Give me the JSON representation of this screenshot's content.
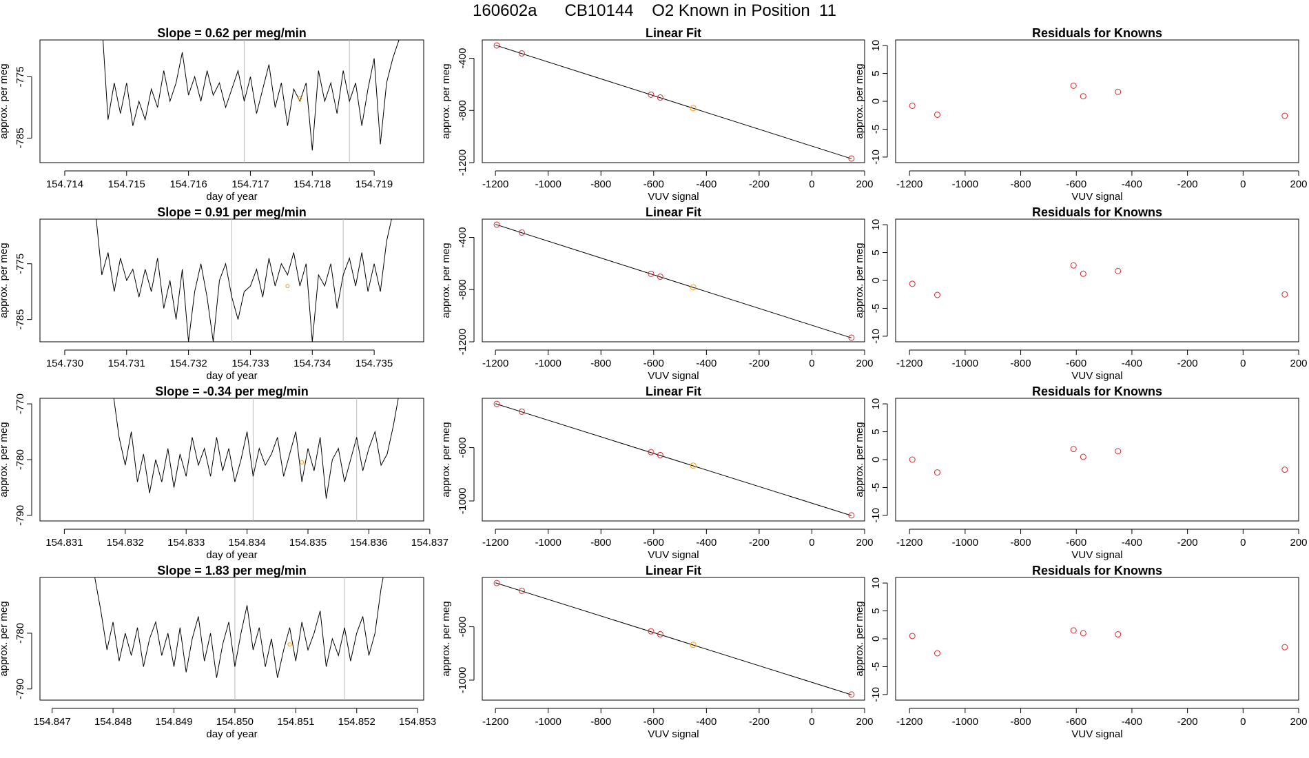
{
  "page_title": "160602a      CB10144    O2 Known in Position  11",
  "colors": {
    "line": "#000000",
    "known_point": "#d62728",
    "sample_point": "#ff9900",
    "marker_line": "#bbbbbb",
    "frame": "#000000"
  },
  "chart_data": [
    {
      "type": "line",
      "row": 0,
      "panel": "timeseries",
      "title": "Slope =  0.62  per meg/min",
      "xlabel": "day of year",
      "ylabel": "approx. per meg",
      "xlim": [
        154.7136,
        154.7198
      ],
      "ylim": [
        -789,
        -769
      ],
      "xticks": [
        154.714,
        154.715,
        154.716,
        154.717,
        154.718,
        154.719
      ],
      "xtick_labels": [
        "154.714",
        "154.715",
        "154.716",
        "154.717",
        "154.718",
        "154.719"
      ],
      "yticks": [
        -775,
        -785
      ],
      "ytick_labels": [
        "-775",
        "-785"
      ],
      "vlines": [
        154.7169,
        154.7186
      ],
      "sample_point": [
        154.7178,
        -778.5
      ],
      "x": [
        154.7146,
        154.7147,
        154.7148,
        154.7149,
        154.715,
        154.7151,
        154.7152,
        154.7153,
        154.7154,
        154.7155,
        154.7156,
        154.7157,
        154.7158,
        154.7159,
        154.716,
        154.7161,
        154.7162,
        154.7163,
        154.7164,
        154.7165,
        154.7166,
        154.7167,
        154.7168,
        154.7169,
        154.717,
        154.7171,
        154.7172,
        154.7173,
        154.7174,
        154.7175,
        154.7176,
        154.7177,
        154.7178,
        154.7179,
        154.718,
        154.7181,
        154.7182,
        154.7183,
        154.7184,
        154.7185,
        154.7186,
        154.7187,
        154.7188,
        154.7189,
        154.719,
        154.7191,
        154.7192,
        154.7193,
        154.7194
      ],
      "y": [
        -766,
        -782,
        -776,
        -781,
        -776,
        -783,
        -779,
        -782,
        -777,
        -780,
        -774,
        -779,
        -776,
        -771,
        -778,
        -775,
        -779,
        -774,
        -778,
        -776,
        -780,
        -777,
        -774,
        -779,
        -775,
        -781,
        -777,
        -773,
        -780,
        -776,
        -783,
        -777,
        -779,
        -776,
        -787,
        -774,
        -779,
        -776,
        -781,
        -774,
        -779,
        -776,
        -783,
        -777,
        -772,
        -786,
        -776,
        -772,
        -769
      ]
    },
    {
      "type": "scatter",
      "row": 0,
      "panel": "fit",
      "title": "Linear Fit",
      "xlabel": "VUV signal",
      "ylabel": "approx. per meg",
      "xlim": [
        -1250,
        200
      ],
      "ylim": [
        -1200,
        -260
      ],
      "xticks": [
        -1200,
        -1000,
        -800,
        -600,
        -400,
        -200,
        0,
        200
      ],
      "xtick_labels": [
        "-1200",
        "-1000",
        "-800",
        "-600",
        "-400",
        "-200",
        "0",
        "200"
      ],
      "yticks": [
        -400,
        -800,
        -1200
      ],
      "ytick_labels": [
        "-400",
        "-800",
        "-1200"
      ],
      "fit_line": [
        [
          -1200,
          -300
        ],
        [
          150,
          -1170
        ]
      ],
      "knowns": [
        [
          -1195,
          -302
        ],
        [
          -1100,
          -363
        ],
        [
          -610,
          -679
        ],
        [
          -575,
          -701
        ],
        [
          150,
          -1168
        ]
      ],
      "sample": [
        [
          -450,
          -782
        ]
      ]
    },
    {
      "type": "scatter",
      "row": 0,
      "panel": "residuals",
      "title": "Residuals for Knowns",
      "xlabel": "VUV signal",
      "ylabel": "approx. per meg",
      "xlim": [
        -1250,
        200
      ],
      "ylim": [
        -11,
        11
      ],
      "xticks": [
        -1200,
        -1000,
        -800,
        -600,
        -400,
        -200,
        0,
        200
      ],
      "xtick_labels": [
        "-1200",
        "-1000",
        "-800",
        "-600",
        "-400",
        "-200",
        "0",
        "200"
      ],
      "yticks": [
        10,
        5,
        0,
        -5,
        -10
      ],
      "ytick_labels": [
        "10",
        "5",
        "0",
        "-5",
        "-10"
      ],
      "points": [
        [
          -1190,
          -0.8
        ],
        [
          -1100,
          -2.4
        ],
        [
          -610,
          2.8
        ],
        [
          -575,
          0.9
        ],
        [
          -450,
          1.7
        ],
        [
          150,
          -2.6
        ]
      ]
    },
    {
      "type": "line",
      "row": 1,
      "panel": "timeseries",
      "title": "Slope =  0.91  per meg/min",
      "xlabel": "day of year",
      "ylabel": "approx. per meg",
      "xlim": [
        154.7296,
        154.7358
      ],
      "ylim": [
        -789,
        -767
      ],
      "xticks": [
        154.73,
        154.731,
        154.732,
        154.733,
        154.734,
        154.735
      ],
      "xtick_labels": [
        "154.730",
        "154.731",
        "154.732",
        "154.733",
        "154.734",
        "154.735"
      ],
      "yticks": [
        -775,
        -785
      ],
      "ytick_labels": [
        "-775",
        "-785"
      ],
      "vlines": [
        154.7327,
        154.7345
      ],
      "sample_point": [
        154.7336,
        -779.0
      ],
      "x": [
        154.7305,
        154.7306,
        154.7307,
        154.7308,
        154.7309,
        154.731,
        154.7311,
        154.7312,
        154.7313,
        154.7314,
        154.7315,
        154.7316,
        154.7317,
        154.7318,
        154.7319,
        154.732,
        154.7321,
        154.7322,
        154.7323,
        154.7324,
        154.7325,
        154.7326,
        154.7327,
        154.7328,
        154.7329,
        154.733,
        154.7331,
        154.7332,
        154.7333,
        154.7334,
        154.7335,
        154.7336,
        154.7337,
        154.7338,
        154.7339,
        154.734,
        154.7341,
        154.7342,
        154.7343,
        154.7344,
        154.7345,
        154.7346,
        154.7347,
        154.7348,
        154.7349,
        154.735,
        154.7351,
        154.7352,
        154.7353
      ],
      "y": [
        -766,
        -777,
        -773,
        -780,
        -774,
        -778,
        -776,
        -781,
        -776,
        -780,
        -774,
        -783,
        -778,
        -785,
        -776,
        -789,
        -780,
        -775,
        -781,
        -789,
        -778,
        -775,
        -781,
        -785,
        -780,
        -779,
        -776,
        -781,
        -774,
        -779,
        -775,
        -777,
        -773,
        -779,
        -775,
        -789,
        -777,
        -779,
        -775,
        -783,
        -777,
        -774,
        -779,
        -773,
        -780,
        -775,
        -780,
        -771,
        -766
      ]
    },
    {
      "type": "scatter",
      "row": 1,
      "panel": "fit",
      "title": "Linear Fit",
      "xlabel": "VUV signal",
      "ylabel": "approx. per meg",
      "xlim": [
        -1250,
        200
      ],
      "ylim": [
        -1200,
        -260
      ],
      "xticks": [
        -1200,
        -1000,
        -800,
        -600,
        -400,
        -200,
        0,
        200
      ],
      "xtick_labels": [
        "-1200",
        "-1000",
        "-800",
        "-600",
        "-400",
        "-200",
        "0",
        "200"
      ],
      "yticks": [
        -400,
        -800,
        -1200
      ],
      "ytick_labels": [
        "-400",
        "-800",
        "-1200"
      ],
      "fit_line": [
        [
          -1200,
          -300
        ],
        [
          150,
          -1170
        ]
      ],
      "knowns": [
        [
          -1195,
          -302
        ],
        [
          -1100,
          -363
        ],
        [
          -610,
          -679
        ],
        [
          -575,
          -701
        ],
        [
          150,
          -1168
        ]
      ],
      "sample": [
        [
          -450,
          -782
        ]
      ]
    },
    {
      "type": "scatter",
      "row": 1,
      "panel": "residuals",
      "title": "Residuals for Knowns",
      "xlabel": "VUV signal",
      "ylabel": "approx. per meg",
      "xlim": [
        -1250,
        200
      ],
      "ylim": [
        -11,
        11
      ],
      "xticks": [
        -1200,
        -1000,
        -800,
        -600,
        -400,
        -200,
        0,
        200
      ],
      "xtick_labels": [
        "-1200",
        "-1000",
        "-800",
        "-600",
        "-400",
        "-200",
        "0",
        "200"
      ],
      "yticks": [
        10,
        5,
        0,
        -5,
        -10
      ],
      "ytick_labels": [
        "10",
        "5",
        "0",
        "-5",
        "-10"
      ],
      "points": [
        [
          -1190,
          -0.6
        ],
        [
          -1100,
          -2.6
        ],
        [
          -610,
          2.7
        ],
        [
          -575,
          1.2
        ],
        [
          -450,
          1.7
        ],
        [
          150,
          -2.5
        ]
      ]
    },
    {
      "type": "line",
      "row": 2,
      "panel": "timeseries",
      "title": "Slope =  -0.34  per meg/min",
      "xlabel": "day of year",
      "ylabel": "approx. per meg",
      "xlim": [
        154.8306,
        154.8369
      ],
      "ylim": [
        -791,
        -769
      ],
      "xticks": [
        154.831,
        154.832,
        154.833,
        154.834,
        154.835,
        154.836,
        154.837
      ],
      "xtick_labels": [
        "154.831",
        "154.832",
        "154.833",
        "154.834",
        "154.835",
        "154.836",
        "154.837"
      ],
      "yticks": [
        -770,
        -780,
        -790
      ],
      "ytick_labels": [
        "-770",
        "-780",
        "-790"
      ],
      "vlines": [
        154.8341,
        154.8358
      ],
      "sample_point": [
        154.8349,
        -780.5
      ],
      "x": [
        154.8318,
        154.8319,
        154.832,
        154.8321,
        154.8322,
        154.8323,
        154.8324,
        154.8325,
        154.8326,
        154.8327,
        154.8328,
        154.8329,
        154.833,
        154.8331,
        154.8332,
        154.8333,
        154.8334,
        154.8335,
        154.8336,
        154.8337,
        154.8338,
        154.8339,
        154.834,
        154.8341,
        154.8342,
        154.8343,
        154.8344,
        154.8345,
        154.8346,
        154.8347,
        154.8348,
        154.8349,
        154.835,
        154.8351,
        154.8352,
        154.8353,
        154.8354,
        154.8355,
        154.8356,
        154.8357,
        154.8358,
        154.8359,
        154.836,
        154.8361,
        154.8362,
        154.8363,
        154.8364,
        154.8365,
        154.8366
      ],
      "y": [
        -768,
        -776,
        -781,
        -775,
        -784,
        -779,
        -786,
        -780,
        -784,
        -778,
        -785,
        -779,
        -783,
        -776,
        -781,
        -778,
        -783,
        -776,
        -782,
        -778,
        -784,
        -780,
        -775,
        -783,
        -778,
        -781,
        -779,
        -776,
        -783,
        -779,
        -775,
        -784,
        -778,
        -782,
        -776,
        -787,
        -780,
        -778,
        -784,
        -780,
        -776,
        -782,
        -778,
        -775,
        -781,
        -779,
        -774,
        -768,
        -765
      ]
    },
    {
      "type": "scatter",
      "row": 2,
      "panel": "fit",
      "title": "Linear Fit",
      "xlabel": "VUV signal",
      "ylabel": "approx. per meg",
      "xlim": [
        -1250,
        200
      ],
      "ylim": [
        -1150,
        -230
      ],
      "xticks": [
        -1200,
        -1000,
        -800,
        -600,
        -400,
        -200,
        0,
        200
      ],
      "xtick_labels": [
        "-1200",
        "-1000",
        "-800",
        "-600",
        "-400",
        "-200",
        "0",
        "200"
      ],
      "yticks": [
        -600,
        -1000
      ],
      "ytick_labels": [
        "-600",
        "-1000"
      ],
      "fit_line": [
        [
          -1200,
          -270
        ],
        [
          150,
          -1110
        ]
      ],
      "knowns": [
        [
          -1195,
          -272
        ],
        [
          -1100,
          -330
        ],
        [
          -610,
          -634
        ],
        [
          -575,
          -656
        ],
        [
          150,
          -1108
        ]
      ],
      "sample": [
        [
          -450,
          -735
        ]
      ]
    },
    {
      "type": "scatter",
      "row": 2,
      "panel": "residuals",
      "title": "Residuals for Knowns",
      "xlabel": "VUV signal",
      "ylabel": "approx. per meg",
      "xlim": [
        -1250,
        200
      ],
      "ylim": [
        -11,
        11
      ],
      "xticks": [
        -1200,
        -1000,
        -800,
        -600,
        -400,
        -200,
        0,
        200
      ],
      "xtick_labels": [
        "-1200",
        "-1000",
        "-800",
        "-600",
        "-400",
        "-200",
        "0",
        "200"
      ],
      "yticks": [
        10,
        5,
        0,
        -5,
        -10
      ],
      "ytick_labels": [
        "10",
        "5",
        "0",
        "-5",
        "-10"
      ],
      "points": [
        [
          -1190,
          0.0
        ],
        [
          -1100,
          -2.3
        ],
        [
          -610,
          1.9
        ],
        [
          -575,
          0.5
        ],
        [
          -450,
          1.5
        ],
        [
          150,
          -1.8
        ]
      ]
    },
    {
      "type": "line",
      "row": 3,
      "panel": "timeseries",
      "title": "Slope =  1.83  per meg/min",
      "xlabel": "day of year",
      "ylabel": "approx. per meg",
      "xlim": [
        154.8468,
        154.8531
      ],
      "ylim": [
        -792,
        -770
      ],
      "xticks": [
        154.847,
        154.848,
        154.849,
        154.85,
        154.851,
        154.852,
        154.853
      ],
      "xtick_labels": [
        "154.847",
        "154.848",
        "154.849",
        "154.850",
        "154.851",
        "154.852",
        "154.853"
      ],
      "yticks": [
        -780,
        -790
      ],
      "ytick_labels": [
        "-780",
        "-790"
      ],
      "vlines": [
        154.85,
        154.8518
      ],
      "sample_point": [
        154.8509,
        -782.0
      ],
      "x": [
        154.8477,
        154.8478,
        154.8479,
        154.848,
        154.8481,
        154.8482,
        154.8483,
        154.8484,
        154.8485,
        154.8486,
        154.8487,
        154.8488,
        154.8489,
        154.849,
        154.8491,
        154.8492,
        154.8493,
        154.8494,
        154.8495,
        154.8496,
        154.8497,
        154.8498,
        154.8499,
        154.85,
        154.8501,
        154.8502,
        154.8503,
        154.8504,
        154.8505,
        154.8506,
        154.8507,
        154.8508,
        154.8509,
        154.851,
        154.8511,
        154.8512,
        154.8513,
        154.8514,
        154.8515,
        154.8516,
        154.8517,
        154.8518,
        154.8519,
        154.852,
        154.8521,
        154.8522,
        154.8523,
        154.8524,
        154.8525
      ],
      "y": [
        -770,
        -776,
        -783,
        -778,
        -785,
        -780,
        -784,
        -779,
        -786,
        -781,
        -778,
        -784,
        -780,
        -786,
        -779,
        -787,
        -781,
        -777,
        -785,
        -780,
        -788,
        -782,
        -778,
        -786,
        -780,
        -775,
        -783,
        -779,
        -786,
        -781,
        -788,
        -783,
        -779,
        -785,
        -778,
        -783,
        -780,
        -776,
        -786,
        -781,
        -784,
        -779,
        -785,
        -780,
        -777,
        -784,
        -780,
        -772,
        -766
      ]
    },
    {
      "type": "scatter",
      "row": 3,
      "panel": "fit",
      "title": "Linear Fit",
      "xlabel": "VUV signal",
      "ylabel": "approx. per meg",
      "xlim": [
        -1250,
        200
      ],
      "ylim": [
        -1150,
        -230
      ],
      "xticks": [
        -1200,
        -1000,
        -800,
        -600,
        -400,
        -200,
        0,
        200
      ],
      "xtick_labels": [
        "-1200",
        "-1000",
        "-800",
        "-600",
        "-400",
        "-200",
        "0",
        "200"
      ],
      "yticks": [
        -600,
        -1000
      ],
      "ytick_labels": [
        "-600",
        "-1000"
      ],
      "fit_line": [
        [
          -1200,
          -270
        ],
        [
          150,
          -1110
        ]
      ],
      "knowns": [
        [
          -1195,
          -272
        ],
        [
          -1100,
          -330
        ],
        [
          -610,
          -634
        ],
        [
          -575,
          -656
        ],
        [
          150,
          -1108
        ]
      ],
      "sample": [
        [
          -450,
          -735
        ]
      ]
    },
    {
      "type": "scatter",
      "row": 3,
      "panel": "residuals",
      "title": "Residuals for Knowns",
      "xlabel": "VUV signal",
      "ylabel": "approx. per meg",
      "xlim": [
        -1250,
        200
      ],
      "ylim": [
        -11,
        11
      ],
      "xticks": [
        -1200,
        -1000,
        -800,
        -600,
        -400,
        -200,
        0,
        200
      ],
      "xtick_labels": [
        "-1200",
        "-1000",
        "-800",
        "-600",
        "-400",
        "-200",
        "0",
        "200"
      ],
      "yticks": [
        10,
        5,
        0,
        -5,
        -10
      ],
      "ytick_labels": [
        "10",
        "5",
        "0",
        "-5",
        "-10"
      ],
      "points": [
        [
          -1190,
          0.5
        ],
        [
          -1100,
          -2.6
        ],
        [
          -610,
          1.5
        ],
        [
          -575,
          1.0
        ],
        [
          -450,
          0.8
        ],
        [
          150,
          -1.5
        ]
      ]
    }
  ]
}
